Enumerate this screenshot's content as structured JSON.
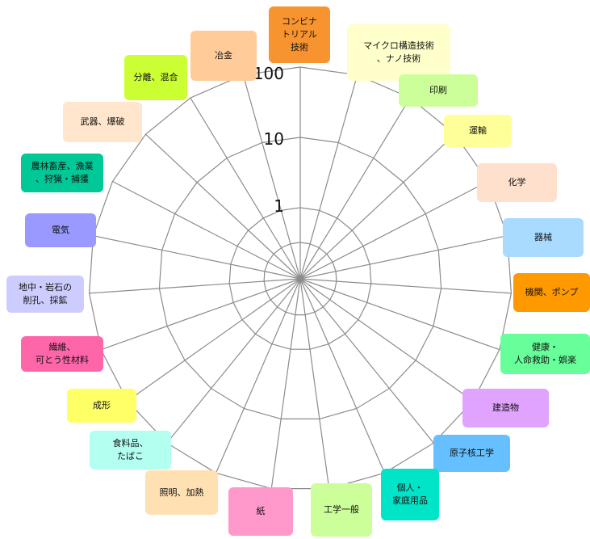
{
  "chart_data": {
    "type": "radar",
    "scale": "log",
    "tick_labels": [
      "1",
      "10",
      "100"
    ],
    "grid": true,
    "categories": [
      {
        "label": "コンビナ\nトリアル\n技術",
        "color": "#f7942f"
      },
      {
        "label": "マイクロ構造技術\n、ナノ技術",
        "color": "#ffffcc"
      },
      {
        "label": "印刷",
        "color": "#ccff99"
      },
      {
        "label": "運輸",
        "color": "#ffff99"
      },
      {
        "label": "化学",
        "color": "#ffe0cc"
      },
      {
        "label": "器械",
        "color": "#a8dbff"
      },
      {
        "label": "機関、ポンプ",
        "color": "#ff9900"
      },
      {
        "label": "健康・\n人命救助・娯楽",
        "color": "#66ff99"
      },
      {
        "label": "建造物",
        "color": "#e0a3ff"
      },
      {
        "label": "原子核工学",
        "color": "#66bfff"
      },
      {
        "label": "個人・\n家庭用品",
        "color": "#00e5c8"
      },
      {
        "label": "工学一般",
        "color": "#ccff99"
      },
      {
        "label": "紙",
        "color": "#ff99cc"
      },
      {
        "label": "照明、加熱",
        "color": "#ffe0b3"
      },
      {
        "label": "食料品、\nたばこ",
        "color": "#b3fff0"
      },
      {
        "label": "成形",
        "color": "#ffff66"
      },
      {
        "label": "繊維、\n可とう性材料",
        "color": "#ff66aa"
      },
      {
        "label": "地中・岩石の\n削孔、採鉱",
        "color": "#ccccff"
      },
      {
        "label": "電気",
        "color": "#9999ff"
      },
      {
        "label": "農林畜産、漁業\n、狩猟・捕獲",
        "color": "#00c896"
      },
      {
        "label": "武器、爆破",
        "color": "#ffe6cc"
      },
      {
        "label": "分離、混合",
        "color": "#ccff33"
      },
      {
        "label": "冶金",
        "color": "#ffcc99"
      }
    ]
  }
}
